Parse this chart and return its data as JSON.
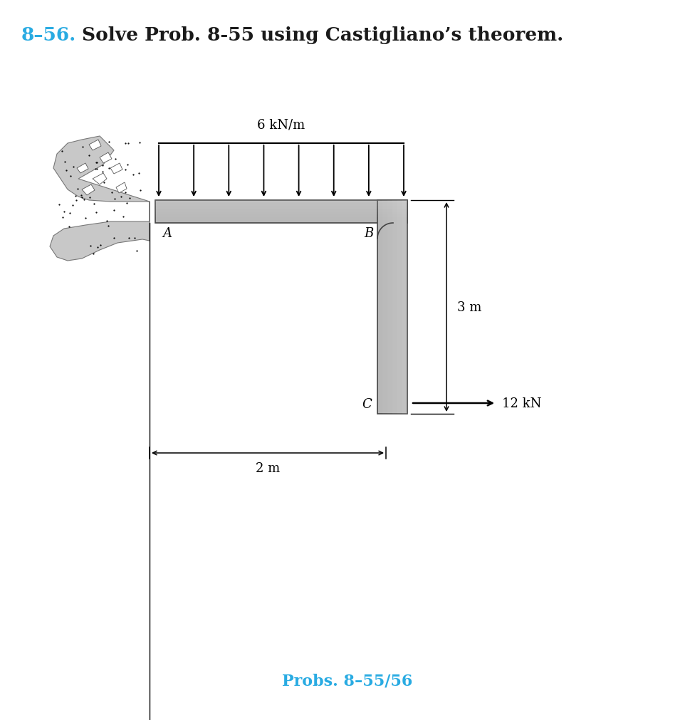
{
  "title_number": "8–56.",
  "title_number_color": "#29ABE2",
  "title_text": "Solve Prob. 8-55 using Castigliano’s theorem.",
  "title_fontsize": 19,
  "beam_color": "#B8B8B8",
  "beam_edge_color": "#444444",
  "distributed_load_label": "6 kN/m",
  "dim_2m": "2 m",
  "dim_3m": "3 m",
  "force_label": "12 kN",
  "label_A": "A",
  "label_B": "B",
  "label_C": "C",
  "caption": "Probs. 8–55/56",
  "caption_color": "#29ABE2",
  "bg_color": "#FFFFFF",
  "wall_color": "#C8C8C8",
  "wall_dot_color": "#444444"
}
